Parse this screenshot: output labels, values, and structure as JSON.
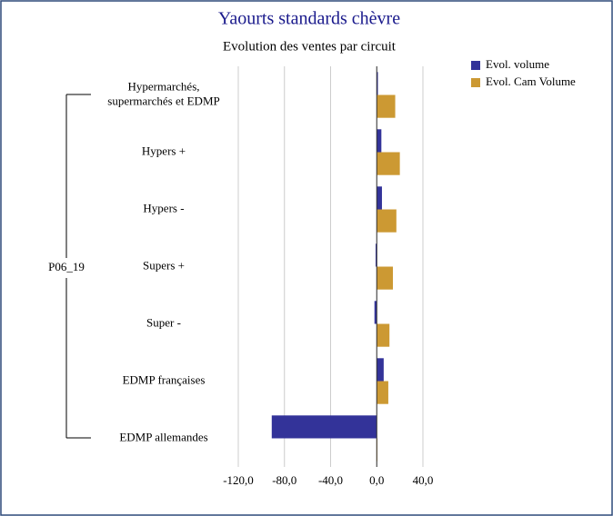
{
  "chart_data": {
    "type": "hbar",
    "title": "Yaourts standards chèvre",
    "subtitle": "Evolution des ventes par circuit",
    "group_label": "P06_19",
    "categories": [
      "Hypermarchés,\nsupermarchés et EDMP",
      "Hypers +",
      "Hypers -",
      "Supers +",
      "Super -",
      "EDMP françaises",
      "EDMP allemandes"
    ],
    "series": [
      {
        "name": "Evol. volume",
        "color": "#333399",
        "values": [
          1,
          4,
          4.5,
          -1,
          -2,
          6,
          -91
        ]
      },
      {
        "name": "Evol. Cam Volume",
        "color": "#cc9933",
        "values": [
          16,
          20,
          17,
          14,
          11,
          10,
          0.5
        ]
      }
    ],
    "xlim": [
      -120,
      40
    ],
    "xticks": [
      {
        "value": -120,
        "label": "-120,0"
      },
      {
        "value": -80,
        "label": "-80,0"
      },
      {
        "value": -40,
        "label": "-40,0"
      },
      {
        "value": 0,
        "label": "0,0"
      },
      {
        "value": 40,
        "label": "40,0"
      }
    ],
    "grid": true,
    "legend": "top-right"
  }
}
